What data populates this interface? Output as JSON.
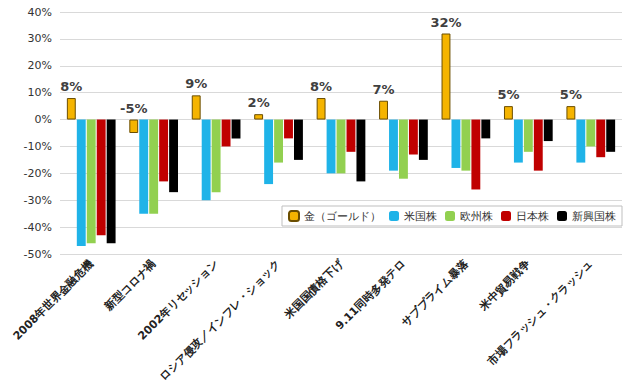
{
  "chart_data": {
    "type": "bar",
    "categories": [
      "2008年世界金融危機",
      "新型コロナ禍",
      "2002年リセッション",
      "ロシア侵攻／インフレ・ショック",
      "米国国債格下げ",
      "9.11同時多発テロ",
      "サブプライム暴落",
      "米中貿易戦争",
      "市場フラッシュ・クラッシュ"
    ],
    "series": [
      {
        "name": "金（ゴールド）",
        "color": "#f5b400",
        "data_labels": true,
        "values": [
          8,
          -5,
          9,
          2,
          8,
          7,
          32,
          5,
          5
        ],
        "value_labels": [
          "8%",
          "-5%",
          "9%",
          "2%",
          "8%",
          "7%",
          "32%",
          "5%",
          "5%"
        ]
      },
      {
        "name": "米国株",
        "color": "#1fb3e8",
        "values": [
          -47,
          -35,
          -30,
          -24,
          -20,
          -19,
          -18,
          -16,
          -16
        ]
      },
      {
        "name": "欧州株",
        "color": "#92d050",
        "values": [
          -46,
          -35,
          -27,
          -16,
          -20,
          -22,
          -19,
          -12,
          -10
        ]
      },
      {
        "name": "日本株",
        "color": "#c00000",
        "values": [
          -43,
          -23,
          -10,
          -7,
          -12,
          -13,
          -26,
          -19,
          -14
        ]
      },
      {
        "name": "新興国株",
        "color": "#000000",
        "values": [
          -46,
          -27,
          -7,
          -15,
          -23,
          -15,
          -7,
          -8,
          -12
        ]
      }
    ],
    "ylim": [
      -50,
      40
    ],
    "yticks": [
      {
        "value": -50,
        "label": "-50%"
      },
      {
        "value": -40,
        "label": "-40%"
      },
      {
        "value": -30,
        "label": "-30%"
      },
      {
        "value": -20,
        "label": "-20%"
      },
      {
        "value": -10,
        "label": "-10%"
      },
      {
        "value": 0,
        "label": "0%"
      },
      {
        "value": 10,
        "label": "10%"
      },
      {
        "value": 20,
        "label": "20%"
      },
      {
        "value": 30,
        "label": "30%"
      },
      {
        "value": 40,
        "label": "40%"
      }
    ],
    "grid": true,
    "legend": "right"
  }
}
